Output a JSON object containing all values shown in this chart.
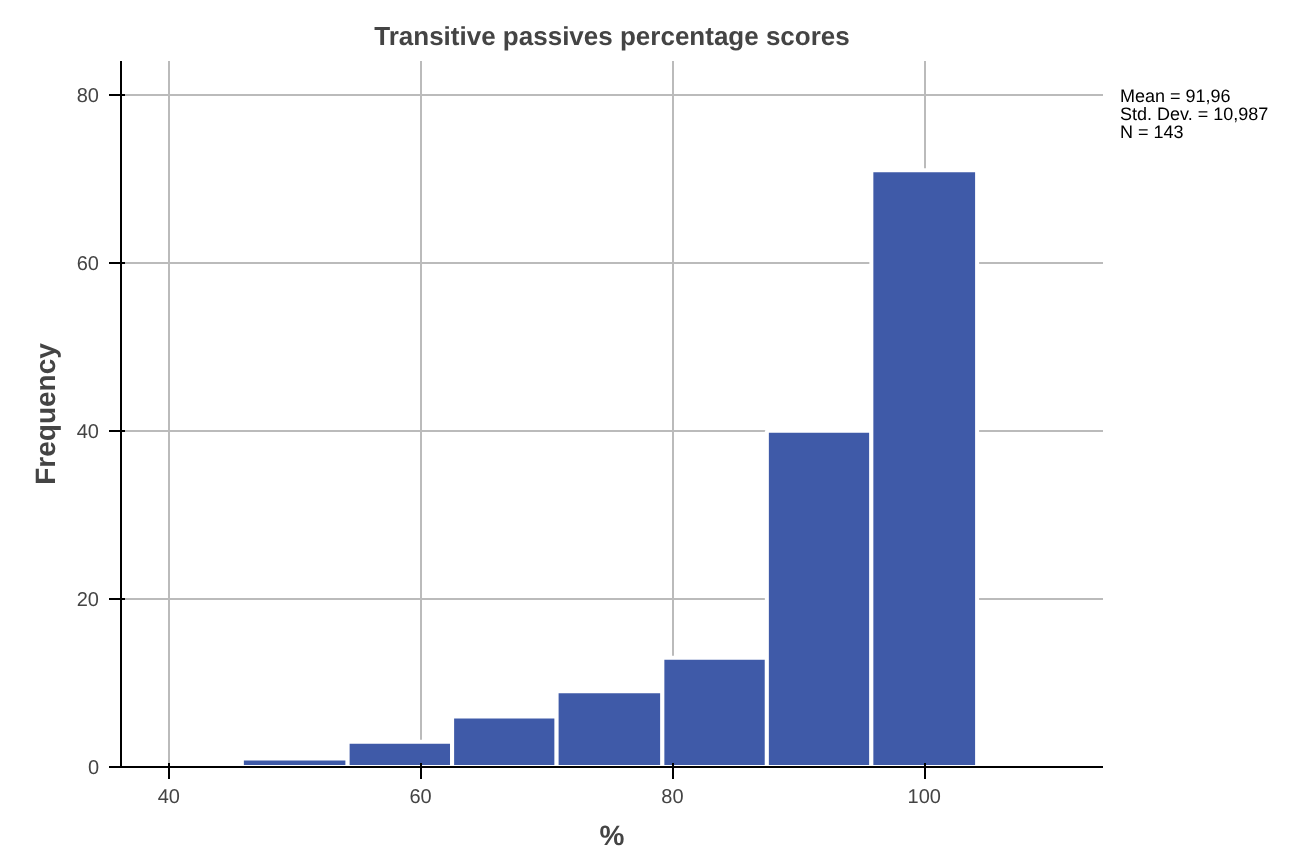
{
  "chart_data": {
    "type": "histogram",
    "title": "Transitive passives percentage scores",
    "xlabel": "%",
    "ylabel": "Frequency",
    "bins": [
      45.8,
      54.2,
      62.5,
      70.8,
      79.2,
      87.5,
      95.8,
      104.2
    ],
    "values": [
      1,
      3,
      6,
      9,
      13,
      40,
      71
    ],
    "color": "#3f5aa8",
    "xlim": [
      36.2,
      114.2
    ],
    "xticks": [
      40,
      60,
      80,
      100
    ],
    "ylim": [
      0,
      84
    ],
    "yticks": [
      0,
      20,
      40,
      60,
      80
    ],
    "grid": true,
    "annotations": [
      "Mean = 91,96",
      "Std. Dev. = 10,987",
      "N = 143"
    ]
  }
}
